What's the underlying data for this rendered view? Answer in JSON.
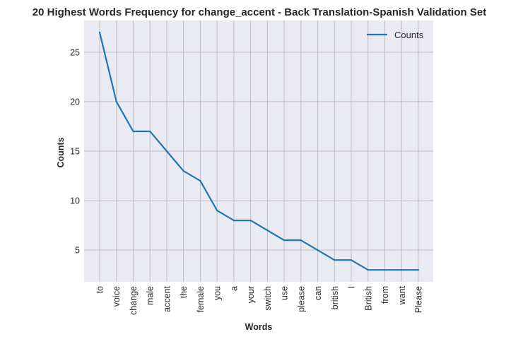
{
  "chart_data": {
    "type": "line",
    "title": "20 Highest Words Frequency for change_accent - Back Translation-Spanish Validation Set",
    "xlabel": "Words",
    "ylabel": "Counts",
    "categories": [
      "to",
      "voice",
      "change",
      "male",
      "accent",
      "the",
      "female",
      "you",
      "a",
      "your",
      "switch",
      "use",
      "please",
      "can",
      "british",
      "I",
      "British",
      "from",
      "want",
      "Please"
    ],
    "series": [
      {
        "name": "Counts",
        "values": [
          27,
          20,
          17,
          17,
          15,
          13,
          12,
          9,
          8,
          8,
          7,
          6,
          6,
          5,
          4,
          4,
          3,
          3,
          3,
          3
        ],
        "color": "#1f77b4"
      }
    ],
    "yticks": [
      5,
      10,
      15,
      20,
      25
    ],
    "ylim": [
      1.8,
      28.2
    ],
    "grid": true,
    "legend": "top-right",
    "background": "#eaeaf2",
    "grid_color": "#c0c0c0"
  }
}
